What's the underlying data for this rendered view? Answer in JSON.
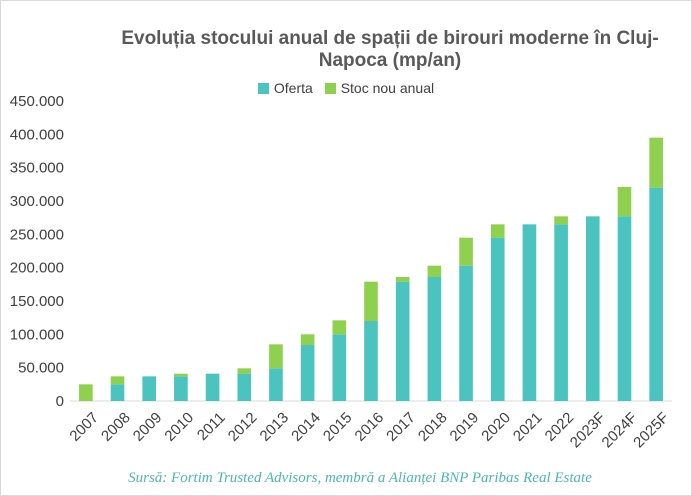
{
  "chart_data": {
    "type": "bar",
    "stacked": true,
    "title": "Evoluția stocului anual de spații de birouri moderne în Cluj-Napoca (mp/an)",
    "categories": [
      "2007",
      "2008",
      "2009",
      "2010",
      "2011",
      "2012",
      "2013",
      "2014",
      "2015",
      "2016",
      "2017",
      "2018",
      "2019",
      "2020",
      "2021",
      "2022",
      "2023F",
      "2024F",
      "2025F"
    ],
    "series": [
      {
        "name": "Oferta",
        "color": "#4bc4c0",
        "values": [
          0,
          25000,
          37000,
          37000,
          41000,
          41000,
          49000,
          84000,
          100000,
          120000,
          179000,
          186000,
          203000,
          245000,
          265000,
          265000,
          277000,
          277000,
          320000
        ]
      },
      {
        "name": "Stoc nou anual",
        "color": "#8fd14f",
        "values": [
          25000,
          12000,
          0,
          4000,
          0,
          8000,
          36000,
          16000,
          21000,
          59000,
          7000,
          17000,
          42000,
          20000,
          0,
          12000,
          0,
          44000,
          75000
        ]
      }
    ],
    "ylim": [
      0,
      450000
    ],
    "yticks": [
      0,
      50000,
      100000,
      150000,
      200000,
      250000,
      300000,
      350000,
      400000,
      450000
    ],
    "ytick_labels": [
      "0",
      "50.000",
      "100.000",
      "150.000",
      "200.000",
      "250.000",
      "300.000",
      "350.000",
      "400.000",
      "450.000"
    ],
    "legend_position": "top",
    "grid": false
  },
  "source": "Sursă: Fortim Trusted Advisors, membră a Alianței BNP Paribas Real Estate"
}
